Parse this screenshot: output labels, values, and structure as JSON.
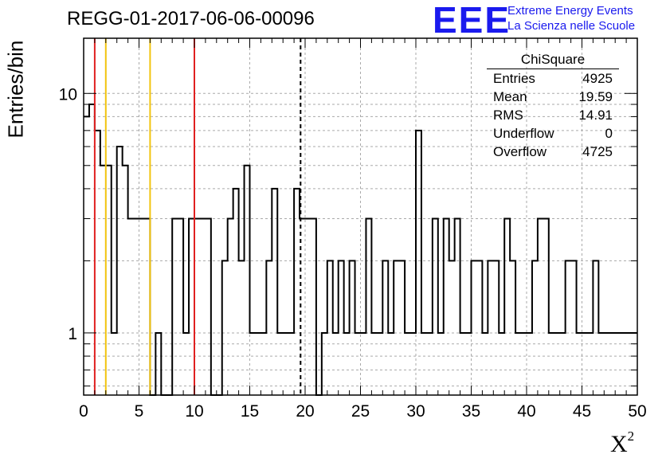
{
  "header": {
    "title": "REGG-01-2017-06-06-00096",
    "logo": "EEE",
    "logo_line1": "Extreme Energy Events",
    "logo_line2": "La Scienza nelle Scuole"
  },
  "axes": {
    "ylabel": "Entries/bin",
    "xlabel": "X",
    "xlabel_sup": "2"
  },
  "stats": {
    "title": "ChiSquare",
    "rows": [
      {
        "label": "Entries",
        "value": "4925"
      },
      {
        "label": "Mean",
        "value": "19.59"
      },
      {
        "label": "RMS",
        "value": "14.91"
      },
      {
        "label": "Underflow",
        "value": "0"
      },
      {
        "label": "Overflow",
        "value": "4725"
      }
    ]
  },
  "colors": {
    "red_line": "#e02020",
    "yellow_line": "#f2c40f",
    "hist": "#000000"
  },
  "chart_data": {
    "type": "histogram",
    "title": "REGG-01-2017-06-06-00096",
    "xlabel": "X²",
    "ylabel": "Entries/bin",
    "xlim": [
      0,
      50
    ],
    "ylim": [
      0.55,
      17
    ],
    "yscale": "log",
    "bin_width": 0.5,
    "grid": true,
    "x_ticks": [
      0,
      5,
      10,
      15,
      20,
      25,
      30,
      35,
      40,
      45,
      50
    ],
    "x_tick_labels": [
      "0",
      "5",
      "10",
      "15",
      "20",
      "25",
      "30",
      "35",
      "40",
      "45",
      "50"
    ],
    "y_tick_values": [
      1,
      10
    ],
    "y_tick_labels": [
      "1",
      "10"
    ],
    "counts": [
      8,
      9,
      7,
      5,
      5,
      1,
      6,
      5,
      3,
      3,
      3,
      3,
      0,
      1,
      0,
      0,
      3,
      3,
      1,
      3,
      3,
      3,
      3,
      0,
      0,
      2,
      3,
      4,
      2,
      5,
      1,
      1,
      1,
      2,
      4,
      1,
      1,
      1,
      4,
      3,
      3,
      3,
      0,
      1,
      2,
      1,
      2,
      1,
      2,
      1,
      1,
      3,
      1,
      1,
      2,
      1,
      2,
      2,
      1,
      1,
      7,
      1,
      1,
      3,
      1,
      3,
      2,
      3,
      1,
      1,
      2,
      2,
      1,
      2,
      2,
      1,
      3,
      2,
      1,
      1,
      1,
      2,
      3,
      3,
      1,
      1,
      1,
      2,
      2,
      1,
      1,
      1,
      2,
      1,
      1,
      1,
      1,
      1,
      1,
      1
    ],
    "vertical_lines": [
      {
        "x": 1,
        "color": "red",
        "style": "solid"
      },
      {
        "x": 2,
        "color": "yellow",
        "style": "solid"
      },
      {
        "x": 6,
        "color": "yellow",
        "style": "solid"
      },
      {
        "x": 10,
        "color": "red",
        "style": "solid"
      },
      {
        "x": 19.59,
        "color": "black",
        "style": "dashed"
      }
    ]
  }
}
